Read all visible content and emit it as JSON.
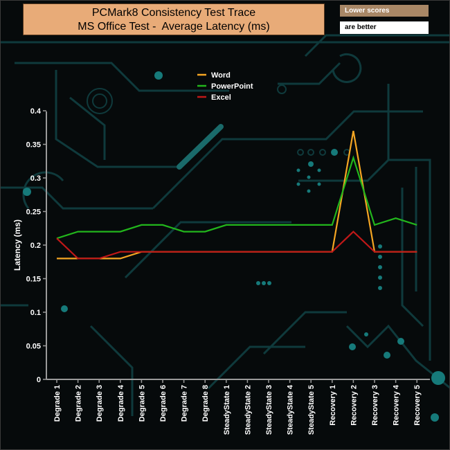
{
  "title_box": {
    "line1": "PCMark8 Consistency Test Trace",
    "line2": "MS Office Test -  Average Latency (ms)"
  },
  "note": {
    "line1": "Lower scores",
    "line2": "are better"
  },
  "chart_data": {
    "type": "line",
    "title": "PCMark8 Consistency Test Trace\nMS Office Test -  Average Latency (ms)",
    "ylabel": "Latency (ms)",
    "xlabel": "",
    "ylim": [
      0,
      0.4
    ],
    "yticks": [
      0,
      0.05,
      0.1,
      0.15,
      0.2,
      0.25,
      0.3,
      0.35,
      0.4
    ],
    "ytick_labels": [
      "0",
      "0.05",
      "0.1",
      "0.15",
      "0.2",
      "0.25",
      "0.3",
      "0.35",
      "0.4"
    ],
    "grid": false,
    "legend_position": "top-center",
    "categories": [
      "Degrade 1",
      "Degrade 2",
      "Degrade 3",
      "Degrade 4",
      "Degrade 5",
      "Degrade 6",
      "Degrade 7",
      "Degrade 8",
      "SteadyState 1",
      "SteadyState 2",
      "SteadyState 3",
      "SteadyState 4",
      "SteadyState 5",
      "Recovery 1",
      "Recovery 2",
      "Recovery 3",
      "Recovery 4",
      "Recovery 5"
    ],
    "series": [
      {
        "name": "Word",
        "color": "#f5a623",
        "values": [
          0.18,
          0.18,
          0.18,
          0.18,
          0.19,
          0.19,
          0.19,
          0.19,
          0.19,
          0.19,
          0.19,
          0.19,
          0.19,
          0.19,
          0.37,
          0.19,
          0.19,
          0.19
        ]
      },
      {
        "name": "PowerPoint",
        "color": "#22b61c",
        "values": [
          0.21,
          0.22,
          0.22,
          0.22,
          0.23,
          0.23,
          0.22,
          0.22,
          0.23,
          0.23,
          0.23,
          0.23,
          0.23,
          0.23,
          0.33,
          0.23,
          0.24,
          0.23
        ]
      },
      {
        "name": "Excel",
        "color": "#c01818",
        "values": [
          0.21,
          0.18,
          0.18,
          0.19,
          0.19,
          0.19,
          0.19,
          0.19,
          0.19,
          0.19,
          0.19,
          0.19,
          0.19,
          0.19,
          0.22,
          0.19,
          0.19,
          0.19
        ]
      }
    ]
  }
}
